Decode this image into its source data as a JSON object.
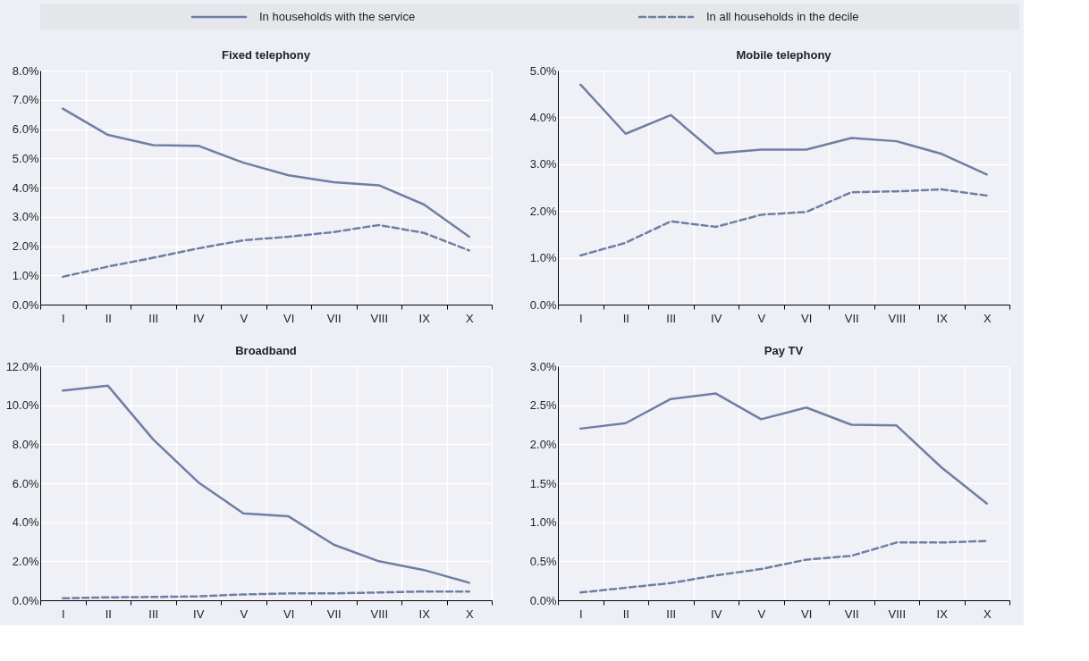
{
  "chart_data": [
    {
      "type": "line",
      "title": "Fixed telephony",
      "categories": [
        "I",
        "II",
        "III",
        "IV",
        "V",
        "VI",
        "VII",
        "VIII",
        "IX",
        "X"
      ],
      "ylim": [
        0,
        8
      ],
      "yticks": [
        {
          "value": 0,
          "label": "0.0%"
        },
        {
          "value": 1,
          "label": "1.0%"
        },
        {
          "value": 2,
          "label": "2.0%"
        },
        {
          "value": 3,
          "label": "3.0%"
        },
        {
          "value": 4,
          "label": "4.0%"
        },
        {
          "value": 5,
          "label": "5.0%"
        },
        {
          "value": 6,
          "label": "6.0%"
        },
        {
          "value": 7,
          "label": "7.0%"
        },
        {
          "value": 8,
          "label": "8.0%"
        }
      ],
      "grid": true,
      "legend": "top",
      "series": [
        {
          "name": "In households with the service",
          "color": "#6f7fa3",
          "line_style": "solid",
          "values": [
            6.7,
            5.8,
            5.45,
            5.43,
            4.85,
            4.42,
            4.18,
            4.08,
            3.42,
            2.32
          ]
        },
        {
          "name": "In all households in the decile",
          "color": "#6f7fa3",
          "line_style": "dashed",
          "values": [
            0.95,
            1.3,
            1.6,
            1.92,
            2.2,
            2.32,
            2.48,
            2.72,
            2.45,
            1.85
          ]
        }
      ]
    },
    {
      "type": "line",
      "title": "Mobile telephony",
      "categories": [
        "I",
        "II",
        "III",
        "IV",
        "V",
        "VI",
        "VII",
        "VIII",
        "IX",
        "X"
      ],
      "ylim": [
        0,
        5
      ],
      "yticks": [
        {
          "value": 0,
          "label": "0.0%"
        },
        {
          "value": 1,
          "label": "1.0%"
        },
        {
          "value": 2,
          "label": "2.0%"
        },
        {
          "value": 3,
          "label": "3.0%"
        },
        {
          "value": 4,
          "label": "4.0%"
        },
        {
          "value": 5,
          "label": "5.0%"
        }
      ],
      "grid": true,
      "series": [
        {
          "color": "#6f7fa3",
          "line_style": "solid",
          "values": [
            4.7,
            3.65,
            4.05,
            3.23,
            3.31,
            3.31,
            3.56,
            3.49,
            3.22,
            2.78
          ]
        },
        {
          "color": "#6f7fa3",
          "line_style": "dashed",
          "values": [
            1.05,
            1.32,
            1.78,
            1.66,
            1.92,
            1.98,
            2.4,
            2.42,
            2.46,
            2.33
          ]
        }
      ]
    },
    {
      "type": "line",
      "title": "Broadband",
      "categories": [
        "I",
        "II",
        "III",
        "IV",
        "V",
        "VI",
        "VII",
        "VIII",
        "IX",
        "X"
      ],
      "ylim": [
        0,
        12
      ],
      "yticks": [
        {
          "value": 0,
          "label": "0.0%"
        },
        {
          "value": 2,
          "label": "2.0%"
        },
        {
          "value": 4,
          "label": "4.0%"
        },
        {
          "value": 6,
          "label": "6.0%"
        },
        {
          "value": 8,
          "label": "8.0%"
        },
        {
          "value": 10,
          "label": "10.0%"
        },
        {
          "value": 12,
          "label": "12.0%"
        }
      ],
      "grid": true,
      "series": [
        {
          "color": "#6f7fa3",
          "line_style": "solid",
          "values": [
            10.75,
            11.0,
            8.25,
            6.05,
            4.45,
            4.3,
            2.85,
            2.0,
            1.55,
            0.9
          ]
        },
        {
          "color": "#6f7fa3",
          "line_style": "dashed",
          "values": [
            0.1,
            0.15,
            0.17,
            0.2,
            0.3,
            0.35,
            0.35,
            0.4,
            0.45,
            0.45
          ]
        }
      ]
    },
    {
      "type": "line",
      "title": "Pay TV",
      "categories": [
        "I",
        "II",
        "III",
        "IV",
        "V",
        "VI",
        "VII",
        "VIII",
        "IX",
        "X"
      ],
      "ylim": [
        0,
        3
      ],
      "yticks": [
        {
          "value": 0,
          "label": "0.0%"
        },
        {
          "value": 0.5,
          "label": "0.5%"
        },
        {
          "value": 1,
          "label": "1.0%"
        },
        {
          "value": 1.5,
          "label": "1.5%"
        },
        {
          "value": 2,
          "label": "2.0%"
        },
        {
          "value": 2.5,
          "label": "2.5%"
        },
        {
          "value": 3,
          "label": "3.0%"
        }
      ],
      "grid": true,
      "series": [
        {
          "color": "#6f7fa3",
          "line_style": "solid",
          "values": [
            2.2,
            2.27,
            2.58,
            2.65,
            2.32,
            2.47,
            2.25,
            2.24,
            1.7,
            1.24
          ]
        },
        {
          "color": "#6f7fa3",
          "line_style": "dashed",
          "values": [
            0.1,
            0.16,
            0.22,
            0.32,
            0.4,
            0.52,
            0.57,
            0.74,
            0.74,
            0.76
          ]
        }
      ]
    }
  ]
}
